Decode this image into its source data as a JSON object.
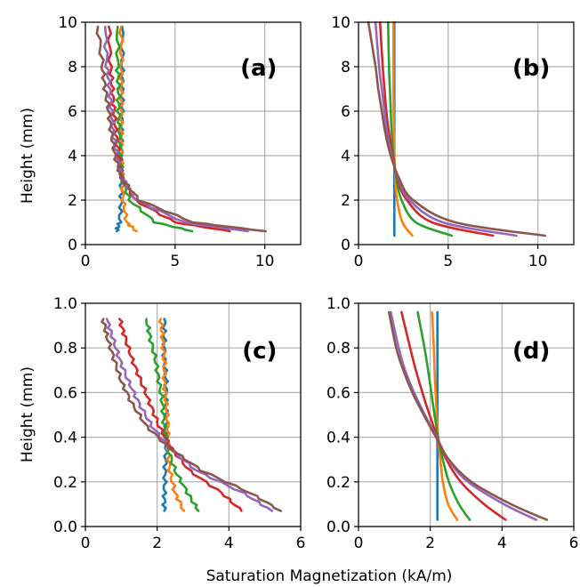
{
  "figure": {
    "ylabel": "Height (mm)",
    "xlabel": "Saturation Magnetization (kA/m)"
  },
  "colors": [
    "#1f77b4",
    "#ff7f0e",
    "#2ca02c",
    "#d62728",
    "#9467bd",
    "#8c564b"
  ],
  "chart_data": [
    {
      "type": "line",
      "panel": "(a)",
      "style": "noisy",
      "xlim": [
        0,
        12
      ],
      "ylim": [
        0,
        10
      ],
      "xticks": [
        "0",
        "5",
        "10"
      ],
      "xtick_values": [
        0,
        5,
        10
      ],
      "yticks": [
        "0",
        "2",
        "4",
        "6",
        "8",
        "10"
      ],
      "ytick_values": [
        0,
        2,
        4,
        6,
        8,
        10
      ],
      "grid": true,
      "series": [
        {
          "x": [
            1.75,
            1.9,
            2.0,
            2.0,
            2.0,
            2.0,
            2.05,
            2.05,
            2.05,
            2.05
          ],
          "y": [
            0.6,
            1.0,
            2.0,
            3.0,
            4.0,
            5.0,
            6.0,
            7.0,
            8.0,
            9.8
          ]
        },
        {
          "x": [
            2.85,
            2.3,
            2.1,
            2.05,
            2.0,
            2.0,
            2.0,
            2.0,
            2.0,
            2.0
          ],
          "y": [
            0.6,
            1.0,
            2.0,
            3.0,
            4.0,
            5.0,
            6.0,
            7.0,
            8.0,
            9.8
          ]
        },
        {
          "x": [
            5.95,
            3.9,
            2.45,
            2.05,
            1.95,
            1.9,
            1.85,
            1.85,
            1.8,
            1.8
          ],
          "y": [
            0.6,
            1.0,
            2.0,
            3.0,
            4.0,
            5.0,
            6.0,
            7.0,
            8.0,
            9.8
          ]
        },
        {
          "x": [
            8.05,
            5.0,
            2.75,
            2.05,
            1.85,
            1.7,
            1.6,
            1.5,
            1.4,
            1.3
          ],
          "y": [
            0.6,
            1.0,
            2.0,
            3.0,
            4.0,
            5.0,
            6.0,
            7.0,
            8.0,
            9.8
          ]
        },
        {
          "x": [
            9.05,
            5.5,
            2.85,
            2.05,
            1.75,
            1.55,
            1.45,
            1.35,
            1.2,
            1.1
          ],
          "y": [
            0.6,
            1.0,
            2.0,
            3.0,
            4.0,
            5.0,
            6.0,
            7.0,
            8.0,
            9.8
          ]
        },
        {
          "x": [
            10.05,
            6.0,
            3.0,
            2.0,
            1.65,
            1.45,
            1.3,
            1.1,
            0.95,
            0.7
          ],
          "y": [
            0.6,
            1.0,
            2.0,
            3.0,
            4.0,
            5.0,
            6.0,
            7.0,
            8.0,
            9.8
          ]
        }
      ]
    },
    {
      "type": "line",
      "panel": "(b)",
      "style": "smooth",
      "xlim": [
        0,
        12
      ],
      "ylim": [
        0,
        10
      ],
      "xticks": [
        "0",
        "5",
        "10"
      ],
      "xtick_values": [
        0,
        5,
        10
      ],
      "yticks": [
        "0",
        "2",
        "4",
        "6",
        "8",
        "10"
      ],
      "ytick_values": [
        0,
        2,
        4,
        6,
        8,
        10
      ],
      "grid": true,
      "series": [
        {
          "x": [
            2.0,
            2.0,
            2.0,
            2.0,
            2.0,
            2.0,
            2.0,
            2.0,
            2.0,
            2.0
          ],
          "y": [
            0.4,
            1.0,
            2.0,
            3.0,
            4.0,
            5.0,
            6.0,
            7.0,
            8.0,
            10.0
          ]
        },
        {
          "x": [
            3.0,
            2.45,
            2.15,
            2.05,
            2.0,
            1.98,
            1.96,
            1.95,
            1.95,
            1.95
          ],
          "y": [
            0.4,
            1.0,
            2.0,
            3.0,
            4.0,
            5.0,
            6.0,
            7.0,
            8.0,
            10.0
          ]
        },
        {
          "x": [
            5.2,
            3.2,
            2.4,
            2.1,
            1.95,
            1.85,
            1.8,
            1.75,
            1.7,
            1.65
          ],
          "y": [
            0.4,
            1.0,
            2.0,
            3.0,
            4.0,
            5.0,
            6.0,
            7.0,
            8.0,
            10.0
          ]
        },
        {
          "x": [
            7.5,
            4.1,
            2.7,
            2.15,
            1.9,
            1.7,
            1.55,
            1.45,
            1.35,
            1.2
          ],
          "y": [
            0.4,
            1.0,
            2.0,
            3.0,
            4.0,
            5.0,
            6.0,
            7.0,
            8.0,
            10.0
          ]
        },
        {
          "x": [
            8.8,
            4.7,
            2.85,
            2.2,
            1.85,
            1.6,
            1.45,
            1.3,
            1.15,
            0.95
          ],
          "y": [
            0.4,
            1.0,
            2.0,
            3.0,
            4.0,
            5.0,
            6.0,
            7.0,
            8.0,
            10.0
          ]
        },
        {
          "x": [
            10.4,
            5.4,
            3.05,
            2.25,
            1.8,
            1.5,
            1.3,
            1.1,
            0.95,
            0.55
          ],
          "y": [
            0.4,
            1.0,
            2.0,
            3.0,
            4.0,
            5.0,
            6.0,
            7.0,
            8.0,
            10.0
          ]
        }
      ]
    },
    {
      "type": "line",
      "panel": "(c)",
      "style": "noisy",
      "xlim": [
        0,
        6
      ],
      "ylim": [
        0,
        1.0
      ],
      "xticks": [
        "0",
        "2",
        "4",
        "6"
      ],
      "xtick_values": [
        0,
        2,
        4,
        6
      ],
      "yticks": [
        "0.0",
        "0.2",
        "0.4",
        "0.6",
        "0.8",
        "1.0"
      ],
      "ytick_values": [
        0,
        0.2,
        0.4,
        0.6,
        0.8,
        1.0
      ],
      "grid": true,
      "series": [
        {
          "x": [
            2.2,
            2.2,
            2.22,
            2.25,
            2.25,
            2.25,
            2.25,
            2.2,
            2.2,
            2.2
          ],
          "y": [
            0.07,
            0.15,
            0.25,
            0.35,
            0.45,
            0.55,
            0.65,
            0.75,
            0.85,
            0.93
          ]
        },
        {
          "x": [
            2.75,
            2.5,
            2.35,
            2.3,
            2.3,
            2.25,
            2.2,
            2.2,
            2.15,
            2.1
          ],
          "y": [
            0.07,
            0.15,
            0.25,
            0.35,
            0.45,
            0.55,
            0.65,
            0.75,
            0.85,
            0.93
          ]
        },
        {
          "x": [
            3.15,
            2.85,
            2.5,
            2.3,
            2.2,
            2.15,
            2.05,
            1.95,
            1.8,
            1.7
          ],
          "y": [
            0.07,
            0.15,
            0.25,
            0.35,
            0.45,
            0.55,
            0.65,
            0.75,
            0.85,
            0.93
          ]
        },
        {
          "x": [
            4.35,
            3.8,
            2.9,
            2.4,
            2.05,
            1.8,
            1.55,
            1.3,
            1.1,
            0.95
          ],
          "y": [
            0.07,
            0.15,
            0.25,
            0.35,
            0.45,
            0.55,
            0.65,
            0.75,
            0.85,
            0.93
          ]
        },
        {
          "x": [
            5.2,
            4.4,
            3.1,
            2.35,
            1.85,
            1.5,
            1.2,
            0.95,
            0.75,
            0.6
          ],
          "y": [
            0.07,
            0.15,
            0.25,
            0.35,
            0.45,
            0.55,
            0.65,
            0.75,
            0.85,
            0.93
          ]
        },
        {
          "x": [
            5.45,
            4.6,
            3.25,
            2.35,
            1.7,
            1.3,
            1.0,
            0.8,
            0.6,
            0.5
          ],
          "y": [
            0.07,
            0.15,
            0.25,
            0.35,
            0.45,
            0.55,
            0.65,
            0.75,
            0.85,
            0.93
          ]
        }
      ]
    },
    {
      "type": "line",
      "panel": "(d)",
      "style": "smooth",
      "xlim": [
        0,
        6
      ],
      "ylim": [
        0,
        1.0
      ],
      "xticks": [
        "0",
        "2",
        "4",
        "6"
      ],
      "xtick_values": [
        0,
        2,
        4,
        6
      ],
      "yticks": [
        "0.0",
        "0.2",
        "0.4",
        "0.6",
        "0.8",
        "1.0"
      ],
      "ytick_values": [
        0,
        0.2,
        0.4,
        0.6,
        0.8,
        1.0
      ],
      "grid": true,
      "series": [
        {
          "x": [
            2.2,
            2.2,
            2.2,
            2.2,
            2.2,
            2.2,
            2.2,
            2.2,
            2.2,
            2.2
          ],
          "y": [
            0.03,
            0.1,
            0.2,
            0.3,
            0.4,
            0.5,
            0.6,
            0.7,
            0.8,
            0.96
          ]
        },
        {
          "x": [
            2.75,
            2.5,
            2.35,
            2.28,
            2.22,
            2.18,
            2.15,
            2.12,
            2.1,
            2.05
          ],
          "y": [
            0.03,
            0.1,
            0.2,
            0.3,
            0.4,
            0.5,
            0.6,
            0.7,
            0.8,
            0.96
          ]
        },
        {
          "x": [
            3.1,
            2.8,
            2.52,
            2.35,
            2.22,
            2.12,
            2.03,
            1.94,
            1.84,
            1.65
          ],
          "y": [
            0.03,
            0.1,
            0.2,
            0.3,
            0.4,
            0.5,
            0.6,
            0.7,
            0.8,
            0.96
          ]
        },
        {
          "x": [
            4.1,
            3.5,
            2.85,
            2.45,
            2.2,
            1.98,
            1.78,
            1.6,
            1.44,
            1.2
          ],
          "y": [
            0.03,
            0.1,
            0.2,
            0.3,
            0.4,
            0.5,
            0.6,
            0.7,
            0.8,
            0.96
          ]
        },
        {
          "x": [
            4.95,
            4.05,
            3.05,
            2.5,
            2.18,
            1.85,
            1.55,
            1.3,
            1.12,
            0.9
          ],
          "y": [
            0.03,
            0.1,
            0.2,
            0.3,
            0.4,
            0.5,
            0.6,
            0.7,
            0.8,
            0.96
          ]
        },
        {
          "x": [
            5.25,
            4.25,
            3.15,
            2.52,
            2.16,
            1.82,
            1.5,
            1.25,
            1.05,
            0.85
          ],
          "y": [
            0.03,
            0.1,
            0.2,
            0.3,
            0.4,
            0.5,
            0.6,
            0.7,
            0.8,
            0.96
          ]
        }
      ]
    }
  ]
}
